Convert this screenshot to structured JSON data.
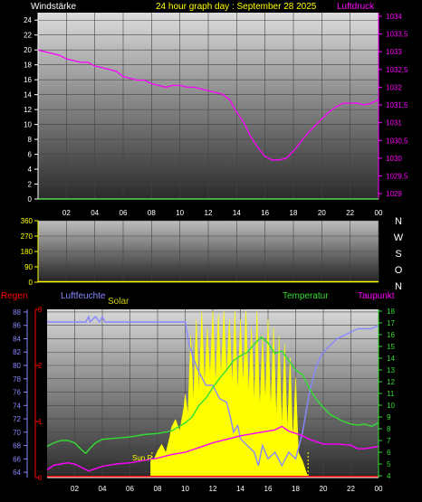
{
  "chart_data": [
    {
      "type": "line",
      "title": "24 hour graph day : September 28 2025",
      "left_label": "Windstärke",
      "right_label": "Luftdruck",
      "x_ticks": [
        "02",
        "04",
        "06",
        "08",
        "10",
        "12",
        "14",
        "16",
        "18",
        "20",
        "22",
        "00"
      ],
      "x_range": [
        0,
        24
      ],
      "y_left_ticks": [
        0,
        2,
        4,
        6,
        8,
        10,
        12,
        14,
        16,
        18,
        20,
        22,
        24
      ],
      "y_left_range": [
        0,
        25
      ],
      "y_right_ticks": [
        "1029",
        "1029,5",
        "1030",
        "1030,5",
        "1031",
        "1031,5",
        "1032",
        "1032,5",
        "1033",
        "1033,5",
        "1034"
      ],
      "y_right_range": [
        1028.85,
        1034.1
      ],
      "series": [
        {
          "name": "Luftdruck",
          "axis": "right",
          "color": "#ff00ff",
          "x": [
            0,
            0.5,
            1,
            1.5,
            2,
            2.5,
            3,
            3.5,
            4,
            4.5,
            5,
            5.5,
            6,
            6.5,
            7,
            7.5,
            8,
            8.5,
            9,
            9.5,
            10,
            10.5,
            11,
            11.5,
            12,
            12.5,
            13,
            13.5,
            14,
            14.5,
            15,
            15.5,
            16,
            16.5,
            17,
            17.5,
            18,
            18.5,
            19,
            19.5,
            20,
            20.5,
            21,
            21.5,
            22,
            22.5,
            23,
            23.5,
            24
          ],
          "y": [
            1033.05,
            1033.0,
            1032.95,
            1032.9,
            1032.8,
            1032.75,
            1032.7,
            1032.7,
            1032.6,
            1032.55,
            1032.5,
            1032.45,
            1032.3,
            1032.25,
            1032.2,
            1032.2,
            1032.1,
            1032.05,
            1032.0,
            1032.05,
            1032.05,
            1032.0,
            1032.0,
            1031.95,
            1031.9,
            1031.85,
            1031.8,
            1031.65,
            1031.3,
            1031.0,
            1030.6,
            1030.3,
            1030.05,
            1029.95,
            1029.95,
            1030.0,
            1030.2,
            1030.45,
            1030.7,
            1030.9,
            1031.1,
            1031.3,
            1031.45,
            1031.55,
            1031.55,
            1031.55,
            1031.5,
            1031.55,
            1031.65
          ]
        },
        {
          "name": "Windstärke",
          "axis": "left",
          "color": "#66ff66",
          "x": [
            0,
            24
          ],
          "y": [
            0,
            0
          ]
        }
      ]
    },
    {
      "type": "scatter",
      "left_label": "",
      "y_left_ticks": [
        0,
        90,
        180,
        270,
        360
      ],
      "y_left_range": [
        0,
        360
      ],
      "compass_labels": [
        "N",
        "W",
        "S",
        "O",
        "N"
      ],
      "series": [
        {
          "name": "Windrichtung",
          "color": "#ffff00",
          "x": [
            0,
            24
          ],
          "y": [
            0,
            0
          ]
        }
      ]
    },
    {
      "type": "line",
      "labels": {
        "regen": "Regen",
        "luftfeuchte": "Luftfeuchte",
        "solar": "Solar",
        "temperatur": "Temperatur",
        "taupunkt": "Taupunkt",
        "sun": "Sun R"
      },
      "x_ticks": [
        "02",
        "04",
        "06",
        "08",
        "10",
        "12",
        "14",
        "16",
        "18",
        "20",
        "22",
        "00"
      ],
      "x_range": [
        0,
        24
      ],
      "y_hum_ticks": [
        64,
        66,
        68,
        70,
        72,
        74,
        76,
        78,
        80,
        82,
        84,
        86,
        88
      ],
      "y_hum_range": [
        63.2,
        88.4
      ],
      "y_temp_ticks": [
        4,
        5,
        6,
        7,
        8,
        9,
        10,
        11,
        12,
        13,
        14,
        15,
        16,
        17,
        18
      ],
      "y_temp_range": [
        3.85,
        18.15
      ],
      "rain_ticks": [
        "0",
        "1",
        "2",
        "3"
      ],
      "sunrise": 7.6,
      "sunset": 18.9,
      "series": [
        {
          "name": "Luftfeuchte",
          "axis": "hum",
          "color": "#8888ff",
          "x": [
            0,
            2,
            2.8,
            3,
            3.1,
            3.5,
            3.8,
            4,
            4.2,
            4.8,
            5,
            6,
            8,
            10,
            10.3,
            10.6,
            11,
            11.5,
            12,
            12.5,
            13,
            13.3,
            13.5,
            13.8,
            14,
            14.5,
            15,
            15.3,
            15.6,
            16,
            16.5,
            17,
            17.5,
            18,
            18.5,
            19,
            19.5,
            20,
            20.5,
            21,
            21.5,
            22,
            22.5,
            23,
            23.5,
            24
          ],
          "y": [
            86.5,
            86.5,
            86.5,
            87.3,
            86.5,
            87.3,
            86.5,
            87.3,
            86.5,
            86.5,
            86.5,
            86.5,
            86.5,
            86.5,
            83,
            81,
            79,
            77,
            77,
            75,
            74.5,
            72,
            70,
            71,
            69,
            68,
            67,
            65,
            68,
            66,
            67,
            65,
            67,
            66,
            70,
            76,
            80,
            82,
            83,
            84,
            84.5,
            85,
            85.5,
            85.5,
            85.5,
            86
          ]
        },
        {
          "name": "Temperatur",
          "axis": "temp",
          "color": "#33dd33",
          "x": [
            0,
            0.5,
            1,
            1.5,
            2,
            2.5,
            2.8,
            3,
            3.5,
            4,
            5,
            6,
            7,
            8,
            9,
            10,
            10.5,
            11,
            11.5,
            12,
            12.5,
            13,
            13.5,
            14,
            14.5,
            15,
            15.5,
            16,
            16.5,
            17,
            17.5,
            18,
            18.5,
            19,
            19.5,
            20,
            20.5,
            21,
            21.5,
            22,
            22.5,
            23,
            23.5,
            24
          ],
          "y": [
            6.5,
            6.8,
            7.0,
            7.0,
            6.8,
            6.2,
            5.9,
            6.2,
            6.8,
            7.1,
            7.2,
            7.3,
            7.5,
            7.6,
            7.8,
            8.5,
            9.0,
            10.0,
            10.6,
            11.5,
            12.3,
            13.0,
            13.8,
            14.2,
            14.5,
            15.2,
            15.8,
            15.3,
            14.4,
            14.6,
            13.8,
            13.0,
            12.6,
            11.4,
            10.5,
            9.8,
            9.2,
            8.9,
            8.6,
            8.4,
            8.3,
            8.4,
            8.2,
            8.5
          ]
        },
        {
          "name": "Taupunkt",
          "axis": "temp",
          "color": "#ff00ff",
          "x": [
            0,
            0.5,
            1,
            1.5,
            2,
            2.5,
            3,
            3.5,
            4,
            5,
            6,
            7,
            8,
            9,
            10,
            11,
            12,
            13,
            14,
            15,
            16,
            16.5,
            17,
            17.5,
            18,
            18.5,
            19,
            19.5,
            20,
            21,
            22,
            22.5,
            23,
            23.5,
            24
          ],
          "y": [
            4.5,
            4.9,
            5.0,
            5.1,
            5.0,
            4.7,
            4.4,
            4.6,
            4.8,
            5.0,
            5.1,
            5.3,
            5.5,
            5.8,
            6.0,
            6.4,
            6.8,
            7.1,
            7.4,
            7.6,
            7.8,
            7.9,
            8.2,
            7.8,
            7.6,
            7.4,
            7.1,
            6.9,
            6.7,
            6.7,
            6.6,
            6.3,
            6.3,
            6.4,
            6.5
          ]
        },
        {
          "name": "Solar",
          "axis": "solar",
          "color": "#ffff00",
          "x": [
            7.5,
            7.8,
            8.0,
            8.3,
            8.6,
            8.9,
            9.0,
            9.3,
            9.6,
            9.9,
            10.0,
            10.2,
            10.4,
            10.6,
            10.8,
            11.0,
            11.2,
            11.4,
            11.6,
            11.8,
            12.0,
            12.2,
            12.4,
            12.6,
            12.8,
            13.0,
            13.2,
            13.4,
            13.6,
            13.8,
            14.0,
            14.2,
            14.4,
            14.6,
            14.8,
            15.0,
            15.2,
            15.4,
            15.6,
            15.8,
            16.0,
            16.2,
            16.4,
            16.6,
            16.8,
            17.0,
            17.2,
            17.4,
            17.6,
            17.8,
            18.0,
            18.2,
            18.5,
            18.9
          ],
          "y": [
            0.1,
            0.12,
            0.16,
            0.2,
            0.15,
            0.25,
            0.3,
            0.35,
            0.28,
            0.42,
            0.5,
            0.38,
            0.85,
            0.45,
            0.95,
            0.5,
            1.0,
            0.55,
            0.9,
            0.6,
            1.0,
            0.55,
            0.98,
            0.6,
            1.0,
            0.6,
            0.95,
            0.55,
            1.0,
            0.5,
            0.95,
            0.55,
            1.0,
            0.5,
            0.9,
            0.45,
            1.0,
            0.4,
            0.85,
            0.45,
            0.95,
            0.4,
            0.9,
            0.35,
            0.85,
            0.3,
            0.8,
            0.28,
            0.72,
            0.22,
            0.6,
            0.15,
            0.1,
            0
          ]
        },
        {
          "name": "Regen",
          "axis": "rain",
          "color": "#ff0000",
          "x": [
            0,
            24
          ],
          "y": [
            0,
            0
          ]
        }
      ]
    }
  ]
}
